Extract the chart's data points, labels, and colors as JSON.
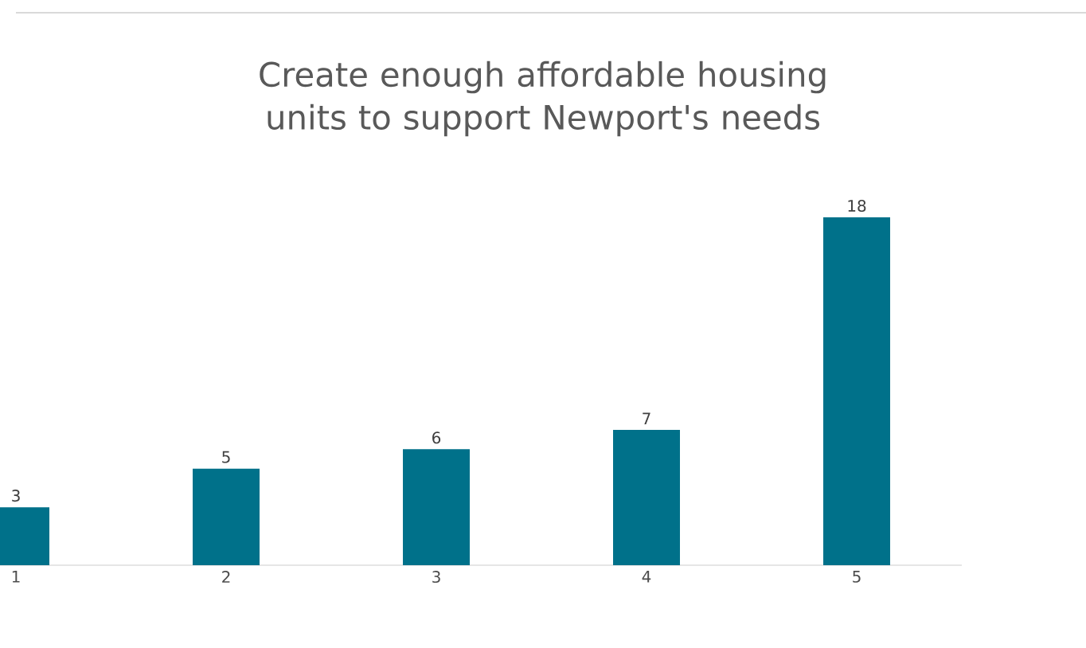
{
  "chart_data": {
    "type": "bar",
    "title": "Create enough affordable housing units to support Newport's needs",
    "categories": [
      "1",
      "2",
      "3",
      "4",
      "5"
    ],
    "values": [
      3,
      5,
      6,
      7,
      18
    ],
    "color": "#00718a",
    "data_labels": true,
    "grid": false
  }
}
